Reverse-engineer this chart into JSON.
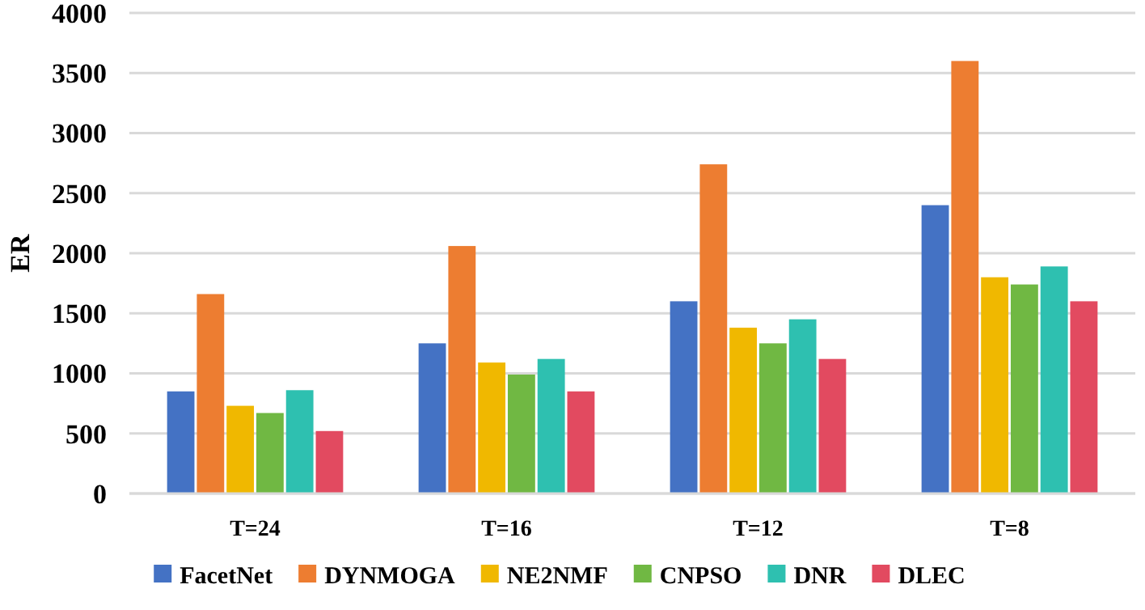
{
  "chart_data": {
    "type": "bar",
    "ylabel": "ER",
    "categories": [
      "T=24",
      "T=16",
      "T=12",
      "T=8"
    ],
    "series": [
      {
        "name": "FacetNet",
        "color": "#4472c4",
        "values": [
          850,
          1250,
          1600,
          2400
        ]
      },
      {
        "name": "DYNMOGA",
        "color": "#ed7d31",
        "values": [
          1660,
          2060,
          2740,
          3600
        ]
      },
      {
        "name": "NE2NMF",
        "color": "#f0b800",
        "values": [
          730,
          1090,
          1380,
          1800
        ]
      },
      {
        "name": "CNPSO",
        "color": "#70b843",
        "values": [
          670,
          990,
          1250,
          1740
        ]
      },
      {
        "name": "DNR",
        "color": "#2ec0b0",
        "values": [
          860,
          1120,
          1450,
          1890
        ]
      },
      {
        "name": "DLEC",
        "color": "#e24a60",
        "values": [
          520,
          850,
          1120,
          1600
        ]
      }
    ],
    "ylim": [
      0,
      4000
    ],
    "yticks": [
      0,
      500,
      1000,
      1500,
      2000,
      2500,
      3000,
      3500,
      4000
    ],
    "grid": "y",
    "legend": "bottom"
  }
}
